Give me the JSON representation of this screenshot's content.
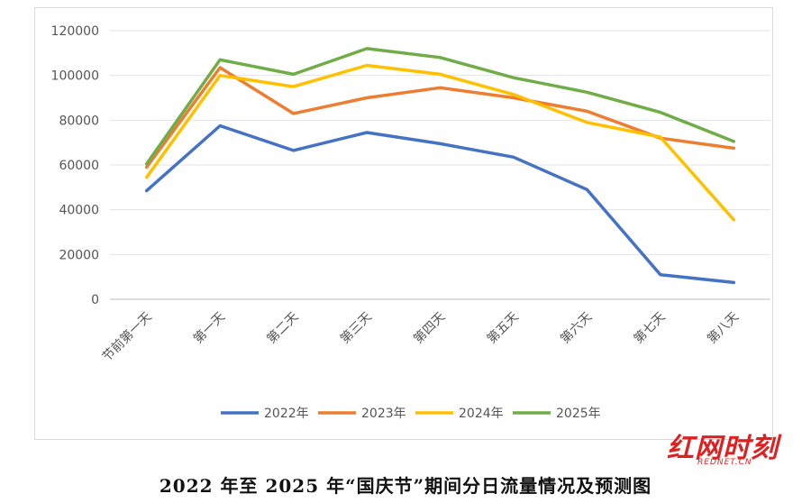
{
  "caption": "2022 年至 2025 年“国庆节”期间分日流量情况及预测图",
  "logo": {
    "main": "红网时刻",
    "sub": "REDNET.CN",
    "color": "#e02020"
  },
  "chart_data": {
    "type": "line",
    "categories": [
      "节前第一天",
      "第一天",
      "第二天",
      "第三天",
      "第四天",
      "第五天",
      "第六天",
      "第七天",
      "第八天"
    ],
    "yticks": [
      "0",
      "20000",
      "40000",
      "60000",
      "80000",
      "100000",
      "120000"
    ],
    "ylim": [
      0,
      120000
    ],
    "grid": true,
    "legend_position": "bottom",
    "series": [
      {
        "name": "2022年",
        "color": "#4472c4",
        "values": [
          48500,
          77500,
          66500,
          74500,
          69500,
          63500,
          49000,
          11000,
          7500
        ]
      },
      {
        "name": "2023年",
        "color": "#ed7d31",
        "values": [
          59000,
          103500,
          83000,
          90000,
          94500,
          90000,
          84000,
          72000,
          67500
        ]
      },
      {
        "name": "2024年",
        "color": "#ffc000",
        "values": [
          54500,
          100000,
          95000,
          104500,
          100500,
          91500,
          79000,
          72500,
          35500
        ]
      },
      {
        "name": "2025年",
        "color": "#70ad47",
        "values": [
          60500,
          107000,
          100500,
          112000,
          108000,
          99000,
          92500,
          83500,
          70500
        ]
      }
    ]
  }
}
